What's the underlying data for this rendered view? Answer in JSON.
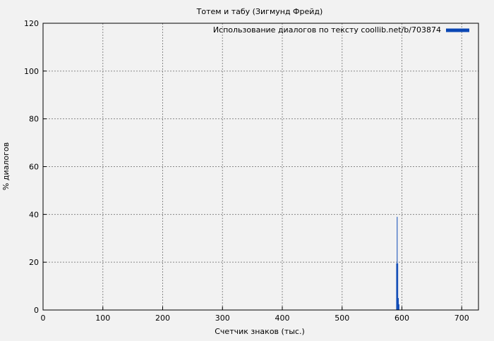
{
  "chart_data": {
    "type": "bar",
    "title": "Тотем и табу (Зигмунд Фрейд)",
    "xlabel": "Счетчик знаков (тыс.)",
    "ylabel": "% диалогов",
    "xlim": [
      0,
      728
    ],
    "ylim": [
      0,
      120
    ],
    "xticks": [
      0,
      100,
      200,
      300,
      400,
      500,
      600,
      700
    ],
    "yticks": [
      0,
      20,
      40,
      60,
      80,
      100,
      120
    ],
    "grid": true,
    "legend_position": "top-right",
    "series": [
      {
        "name": "Использование диалогов по тексту coollib.net/b/703874",
        "color": "#0a46b4",
        "points": [
          [
            591,
            19.5
          ],
          [
            592,
            39
          ],
          [
            593,
            19.5
          ],
          [
            594,
            5
          ],
          [
            595,
            2.4
          ]
        ]
      }
    ]
  }
}
